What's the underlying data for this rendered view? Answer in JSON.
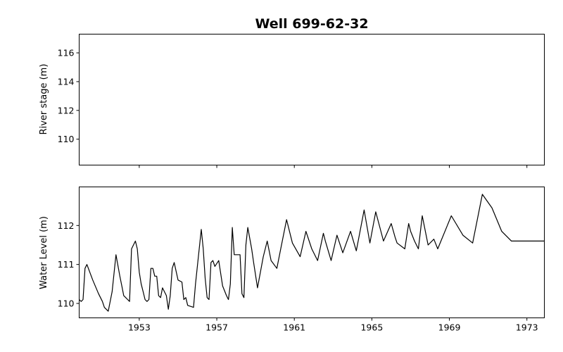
{
  "chart_data": [
    {
      "type": "line",
      "title": "Well 699-62-32",
      "xlabel": "",
      "ylabel": "River stage (m)",
      "ylim": [
        108.2,
        117.3
      ],
      "yticks": [
        110,
        112,
        114,
        116
      ],
      "xlim": [
        1949.9,
        1973.9
      ],
      "xticks": [
        1953,
        1957,
        1961,
        1965,
        1969,
        1973
      ],
      "xtick_labels_visible": false,
      "series": []
    },
    {
      "type": "line",
      "title": "",
      "xlabel": "",
      "ylabel": "Water Level (m)",
      "ylim": [
        109.63,
        112.99
      ],
      "yticks": [
        110,
        111,
        112
      ],
      "xlim": [
        1949.9,
        1973.9
      ],
      "xticks": [
        1953,
        1957,
        1961,
        1965,
        1969,
        1973
      ],
      "line_color": "#000000",
      "series": [
        {
          "x": [
            1949.9,
            1950.0,
            1950.1,
            1950.2,
            1950.3,
            1950.6,
            1950.9,
            1951.1,
            1951.2,
            1951.4,
            1951.6,
            1951.8,
            1952.0,
            1952.1,
            1952.2,
            1952.3,
            1952.4,
            1952.5,
            1952.6,
            1952.8,
            1952.9,
            1953.0,
            1953.1,
            1953.2,
            1953.3,
            1953.4,
            1953.5,
            1953.6,
            1953.7,
            1953.8,
            1953.9,
            1954.0,
            1954.1,
            1954.2,
            1954.4,
            1954.5,
            1954.6,
            1954.7,
            1954.8,
            1955.0,
            1955.2,
            1955.3,
            1955.4,
            1955.5,
            1955.8,
            1955.9,
            1956.2,
            1956.3,
            1956.4,
            1956.5,
            1956.6,
            1956.7,
            1956.8,
            1956.9,
            1957.1,
            1957.3,
            1957.5,
            1957.6,
            1957.7,
            1957.8,
            1957.9,
            1958.1,
            1958.2,
            1958.3,
            1958.4,
            1958.5,
            1958.6,
            1958.8,
            1958.9,
            1959.1,
            1959.4,
            1959.6,
            1959.8,
            1960.1,
            1960.3,
            1960.6,
            1960.9,
            1961.3,
            1961.6,
            1961.9,
            1962.2,
            1962.5,
            1962.6,
            1962.9,
            1963.2,
            1963.5,
            1963.9,
            1964.2,
            1964.6,
            1964.9,
            1965.2,
            1965.6,
            1966.0,
            1966.2,
            1966.3,
            1966.7,
            1966.9,
            1967.0,
            1967.2,
            1967.4,
            1967.6,
            1967.9,
            1968.2,
            1968.4,
            1969.1,
            1969.7,
            1970.2,
            1970.7,
            1971.2,
            1971.7,
            1972.2,
            1972.6,
            1973.0,
            1973.3,
            1973.7,
            1973.9
          ],
          "y": [
            110.1,
            110.05,
            110.1,
            110.9,
            111.0,
            110.6,
            110.25,
            110.05,
            109.9,
            109.8,
            110.3,
            111.25,
            110.7,
            110.45,
            110.2,
            110.15,
            110.1,
            110.05,
            111.4,
            111.6,
            111.4,
            110.8,
            110.5,
            110.3,
            110.1,
            110.05,
            110.1,
            110.9,
            110.9,
            110.7,
            110.7,
            110.2,
            110.15,
            110.4,
            110.2,
            109.85,
            110.2,
            110.9,
            111.05,
            110.6,
            110.55,
            110.1,
            110.15,
            109.95,
            109.9,
            110.5,
            111.9,
            111.4,
            110.65,
            110.15,
            110.1,
            111.05,
            111.1,
            110.95,
            111.1,
            110.45,
            110.2,
            110.1,
            110.5,
            111.95,
            111.25,
            111.25,
            111.25,
            110.25,
            110.15,
            111.5,
            111.95,
            111.4,
            111.05,
            110.4,
            111.2,
            111.6,
            111.1,
            110.9,
            111.4,
            112.15,
            111.55,
            111.2,
            111.85,
            111.4,
            111.1,
            111.8,
            111.6,
            111.1,
            111.75,
            111.3,
            111.85,
            111.35,
            112.4,
            111.55,
            112.35,
            111.6,
            112.05,
            111.7,
            111.55,
            111.4,
            112.05,
            111.85,
            111.6,
            111.4,
            112.25,
            111.5,
            111.65,
            111.4,
            112.25,
            111.75,
            111.55,
            112.8,
            112.45,
            111.85,
            111.6,
            111.6,
            111.6,
            111.6,
            111.6,
            111.6
          ]
        }
      ]
    }
  ]
}
